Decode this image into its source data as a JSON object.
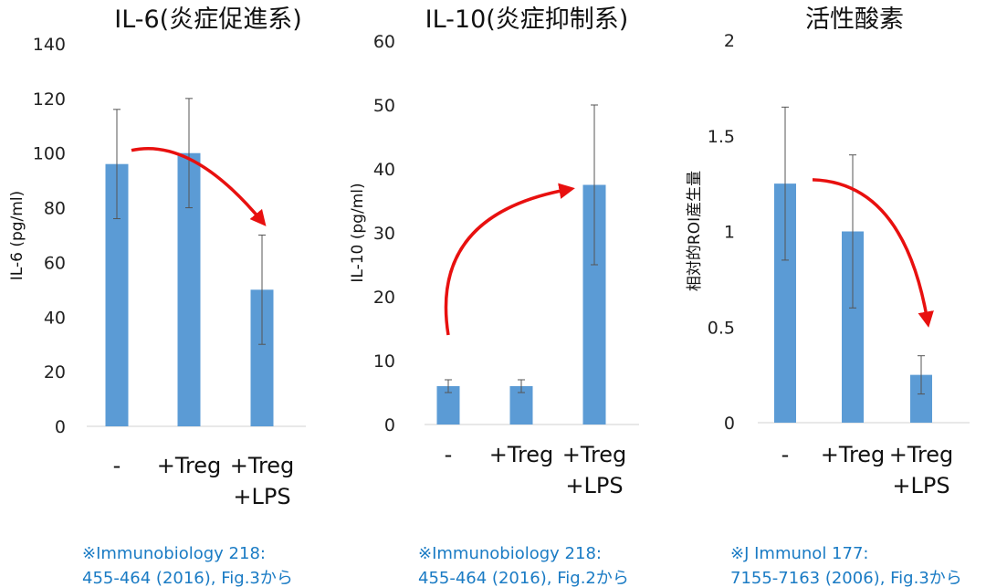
{
  "chart_data": [
    {
      "type": "bar",
      "title": "IL-6(炎症促進系)",
      "ylabel": "IL-6 (pg/ml)",
      "ylim": [
        0,
        140
      ],
      "yticks": [
        "0",
        "20",
        "40",
        "60",
        "80",
        "100",
        "120",
        "140"
      ],
      "categories": [
        [
          "-"
        ],
        [
          "+Treg"
        ],
        [
          "+Treg",
          "+LPS"
        ]
      ],
      "values": [
        96,
        100,
        50
      ],
      "errors": [
        20,
        20,
        20
      ],
      "arrow": {
        "from": 0,
        "to": 2
      },
      "citation": [
        "※Immunobiology 218:",
        "455-464 (2016), Fig.3から"
      ]
    },
    {
      "type": "bar",
      "title": "IL-10(炎症抑制系)",
      "ylabel": "IL-10 (pg/ml)",
      "ylim": [
        0,
        60
      ],
      "yticks": [
        "0",
        "10",
        "20",
        "30",
        "40",
        "50",
        "60"
      ],
      "categories": [
        [
          "-"
        ],
        [
          "+Treg"
        ],
        [
          "+Treg",
          "+LPS"
        ]
      ],
      "values": [
        6,
        6,
        37.5
      ],
      "errors": [
        1,
        1,
        12.5
      ],
      "arrow": {
        "from": 0,
        "to": 2
      },
      "citation": [
        "※Immunobiology 218:",
        "455-464 (2016), Fig.2から"
      ]
    },
    {
      "type": "bar",
      "title": "活性酸素",
      "ylabel": "相対的ROI産生量",
      "ylim": [
        0,
        2
      ],
      "yticks": [
        "0",
        "0.5",
        "1",
        "1.5",
        "2"
      ],
      "categories": [
        [
          "-"
        ],
        [
          "+Treg"
        ],
        [
          "+Treg",
          "+LPS"
        ]
      ],
      "values": [
        1.25,
        1.0,
        0.25
      ],
      "errors": [
        0.4,
        0.4,
        0.1
      ],
      "arrow": {
        "from": 0,
        "to": 2
      },
      "citation": [
        "※J Immunol 177:",
        "7155-7163 (2006), Fig.3から"
      ]
    }
  ],
  "colors": {
    "bar": "#5b9bd5",
    "arrow": "#e8100f",
    "citation": "#1a7bc4"
  }
}
